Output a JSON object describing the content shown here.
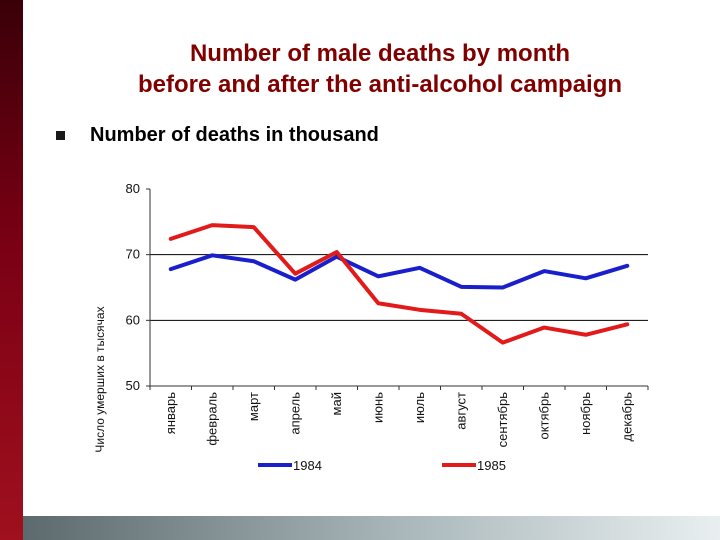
{
  "slide": {
    "title_line1": "Number of male deaths by month",
    "title_line2": "before and after the anti-alcohol campaign",
    "bullet": "Number of deaths in thousand"
  },
  "colors": {
    "title": "#800000",
    "series_1984": "#1a1fcc",
    "series_1985": "#e21a1a",
    "sidebar": "#7a0014"
  },
  "icons": {
    "bullet": "square-bullet-icon"
  },
  "chart_data": {
    "type": "line",
    "title": "",
    "xlabel": "",
    "ylabel": "Число умерших в тысячах",
    "ylim": [
      50,
      80
    ],
    "yticks": [
      50,
      60,
      70,
      80
    ],
    "grid": "horizontal at 60 and 70",
    "legend_placement": "bottom",
    "categories": [
      "январь",
      "февраль",
      "март",
      "апрель",
      "май",
      "июнь",
      "июль",
      "август",
      "сентябрь",
      "октябрь",
      "ноябрь",
      "декабрь"
    ],
    "series": [
      {
        "name": "1984",
        "color": "#1a1fcc",
        "values": [
          67.8,
          69.9,
          69.0,
          66.2,
          69.7,
          66.7,
          68.0,
          65.1,
          65.0,
          67.5,
          66.4,
          68.3
        ]
      },
      {
        "name": "1985",
        "color": "#e21a1a",
        "values": [
          72.4,
          74.5,
          74.2,
          67.1,
          70.4,
          62.6,
          61.6,
          61.0,
          56.6,
          58.9,
          57.8,
          59.4
        ]
      }
    ]
  }
}
